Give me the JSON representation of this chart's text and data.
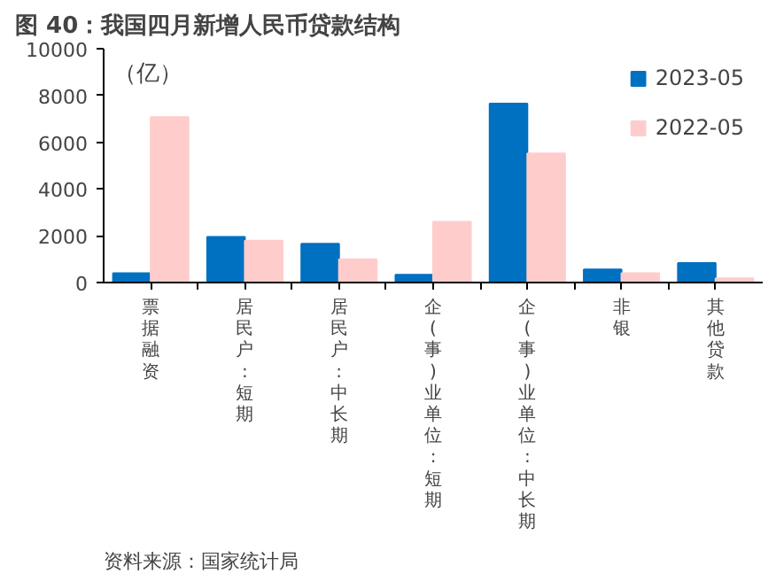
{
  "chart_data": {
    "type": "bar",
    "title": "图 40：我国四月新增人民币贷款结构",
    "ylabel": "（亿）",
    "categories": [
      "票据融资",
      "居民户:短期",
      "居民户:中长期",
      "企(事)业单位:短期",
      "企(事)业单位:中长期",
      "非银",
      "其他贷款"
    ],
    "series": [
      {
        "name": "2023-05",
        "color": "#0070c0",
        "values": [
          400,
          1950,
          1660,
          330,
          7650,
          560,
          830
        ]
      },
      {
        "name": "2022-05",
        "color": "#ffcccc",
        "values": [
          7070,
          1790,
          990,
          2590,
          5520,
          400,
          180
        ]
      }
    ],
    "ylim": [
      0,
      10000
    ],
    "yticks": [
      0,
      2000,
      4000,
      6000,
      8000,
      10000
    ],
    "grid": false,
    "legend": "top right",
    "annotations": [
      "资料来源：国家统计局"
    ]
  }
}
